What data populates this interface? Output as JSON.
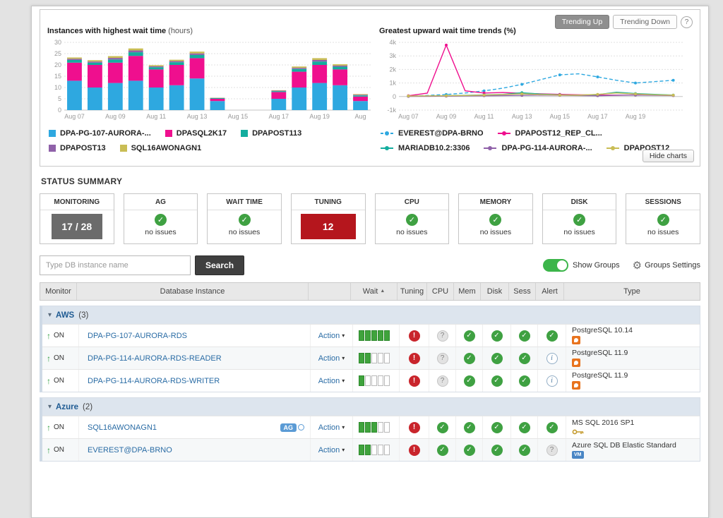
{
  "charts": {
    "bar_title": "Instances with highest wait time",
    "bar_unit": "(hours)",
    "line_title": "Greatest upward wait time trends (%)",
    "trending_up": "Trending Up",
    "trending_down": "Trending Down",
    "help": "?",
    "hide_button": "Hide charts"
  },
  "chart_data": [
    {
      "type": "bar",
      "stacked": true,
      "title": "Instances with highest wait time (hours)",
      "categories": [
        "Aug 07",
        "Aug 08",
        "Aug 09",
        "Aug 10",
        "Aug 11",
        "Aug 12",
        "Aug 13",
        "Aug 14",
        "Aug 15",
        "Aug 16",
        "Aug 17",
        "Aug 18",
        "Aug 19",
        "Aug 20",
        "Aug 21"
      ],
      "x_tick_labels": [
        "Aug 07",
        "Aug 09",
        "Aug 11",
        "Aug 13",
        "Aug 15",
        "Aug 17",
        "Aug 19",
        "Aug"
      ],
      "ylim": [
        0,
        30
      ],
      "y_ticks": [
        0,
        5,
        10,
        15,
        20,
        25,
        30
      ],
      "ylabel": "hours",
      "grid": true,
      "legend_position": "bottom",
      "series": [
        {
          "name": "DPA-PG-107-AURORA-...",
          "color": "#2ea8e0",
          "values": [
            13,
            10,
            12,
            13,
            10,
            11,
            14,
            4,
            0,
            0,
            5,
            10,
            12,
            11,
            4
          ]
        },
        {
          "name": "DPASQL2K17",
          "color": "#ef0f8e",
          "values": [
            8,
            10,
            9,
            11,
            8,
            9,
            9,
            1,
            0,
            0,
            3,
            7,
            8,
            7,
            2
          ]
        },
        {
          "name": "DPAPOST113",
          "color": "#13ad9e",
          "values": [
            1.2,
            1,
            1.4,
            1.6,
            1,
            1.2,
            1.4,
            0.3,
            0,
            0,
            0.4,
            1.2,
            1.5,
            1.2,
            0.5
          ]
        },
        {
          "name": "DPAPOST13",
          "color": "#8f61a9",
          "values": [
            0.5,
            0.5,
            0.7,
            0.8,
            0.4,
            0.5,
            0.7,
            0.1,
            0,
            0,
            0.2,
            0.5,
            0.7,
            0.5,
            0.3
          ]
        },
        {
          "name": "SQL16AWONAGN1",
          "color": "#c9bd55",
          "values": [
            0.6,
            0.6,
            0.8,
            0.9,
            0.5,
            0.6,
            0.8,
            0.1,
            0,
            0,
            0.2,
            0.6,
            0.8,
            0.6,
            0.3
          ]
        }
      ]
    },
    {
      "type": "line",
      "title": "Greatest upward wait time trends (%)",
      "categories": [
        "Aug 07",
        "Aug 08",
        "Aug 09",
        "Aug 10",
        "Aug 11",
        "Aug 12",
        "Aug 13",
        "Aug 14",
        "Aug 15",
        "Aug 16",
        "Aug 17",
        "Aug 18",
        "Aug 19",
        "Aug 20",
        "Aug 21"
      ],
      "x_tick_labels": [
        "Aug 07",
        "Aug 09",
        "Aug 11",
        "Aug 13",
        "Aug 15",
        "Aug 17",
        "Aug 19"
      ],
      "ylim": [
        -1000,
        4000
      ],
      "y_ticks": [
        -1000,
        0,
        1000,
        2000,
        3000,
        4000
      ],
      "y_tick_labels": [
        "-1k",
        "0",
        "1k",
        "2k",
        "3k",
        "4k"
      ],
      "grid": true,
      "legend_position": "bottom",
      "series": [
        {
          "name": "EVEREST@DPA-BRNO",
          "color": "#2ea8e0",
          "dashed": true,
          "values": [
            20,
            80,
            150,
            260,
            420,
            620,
            900,
            1250,
            1600,
            1680,
            1450,
            1200,
            1000,
            1100,
            1200
          ]
        },
        {
          "name": "DPAPOST12_REP_CL...",
          "color": "#ef0f8e",
          "values": [
            60,
            250,
            3800,
            420,
            260,
            300,
            240,
            200,
            160,
            130,
            110,
            100,
            120,
            110,
            90
          ]
        },
        {
          "name": "MARIADB10.2:3306",
          "color": "#13ad9e",
          "values": [
            30,
            40,
            60,
            90,
            120,
            160,
            280,
            180,
            120,
            100,
            140,
            320,
            220,
            160,
            110
          ]
        },
        {
          "name": "DPA-PG-114-AURORA-...",
          "color": "#8f61a9",
          "values": [
            10,
            20,
            30,
            50,
            60,
            70,
            90,
            110,
            90,
            70,
            60,
            90,
            110,
            90,
            70
          ]
        },
        {
          "name": "DPAPOST12",
          "color": "#c9bd55",
          "values": [
            40,
            50,
            60,
            80,
            110,
            150,
            200,
            150,
            110,
            100,
            160,
            260,
            190,
            130,
            100
          ]
        }
      ]
    }
  ],
  "status_summary": {
    "title": "STATUS SUMMARY",
    "cards": [
      {
        "label": "MONITORING",
        "kind": "count",
        "value": "17 / 28"
      },
      {
        "label": "AG",
        "kind": "ok",
        "value": "no issues"
      },
      {
        "label": "WAIT TIME",
        "kind": "ok",
        "value": "no issues"
      },
      {
        "label": "TUNING",
        "kind": "alert",
        "value": "12"
      },
      {
        "label": "CPU",
        "kind": "ok",
        "value": "no issues"
      },
      {
        "label": "MEMORY",
        "kind": "ok",
        "value": "no issues"
      },
      {
        "label": "DISK",
        "kind": "ok",
        "value": "no issues"
      },
      {
        "label": "SESSIONS",
        "kind": "ok",
        "value": "no issues"
      }
    ]
  },
  "toolbar": {
    "search_placeholder": "Type DB instance name",
    "search_button": "Search",
    "show_groups_label": "Show Groups",
    "groups_settings_label": "Groups Settings"
  },
  "table": {
    "action_label": "Action",
    "columns": [
      {
        "key": "monitor",
        "label": "Monitor"
      },
      {
        "key": "instance",
        "label": "Database Instance"
      },
      {
        "key": "action",
        "label": ""
      },
      {
        "key": "wait",
        "label": "Wait",
        "sort": "asc"
      },
      {
        "key": "tuning",
        "label": "Tuning"
      },
      {
        "key": "cpu",
        "label": "CPU"
      },
      {
        "key": "mem",
        "label": "Mem"
      },
      {
        "key": "disk",
        "label": "Disk"
      },
      {
        "key": "sess",
        "label": "Sess"
      },
      {
        "key": "alert",
        "label": "Alert"
      },
      {
        "key": "type",
        "label": "Type"
      }
    ],
    "groups": [
      {
        "name": "AWS",
        "count": "(3)",
        "rows": [
          {
            "monitor": "ON",
            "name": "DPA-PG-107-AURORA-RDS",
            "badge": null,
            "wait": 5,
            "tuning": "alert",
            "cpu": "unknown",
            "mem": "ok",
            "disk": "ok",
            "sess": "ok",
            "alert": "ok",
            "type": "PostgreSQL 10.14",
            "type_icon": "postgresql"
          },
          {
            "monitor": "ON",
            "name": "DPA-PG-114-AURORA-RDS-READER",
            "badge": null,
            "wait": 2,
            "tuning": "alert",
            "cpu": "unknown",
            "mem": "ok",
            "disk": "ok",
            "sess": "ok",
            "alert": "info",
            "type": "PostgreSQL 11.9",
            "type_icon": "postgresql"
          },
          {
            "monitor": "ON",
            "name": "DPA-PG-114-AURORA-RDS-WRITER",
            "badge": null,
            "wait": 1,
            "tuning": "alert",
            "cpu": "unknown",
            "mem": "ok",
            "disk": "ok",
            "sess": "ok",
            "alert": "info",
            "type": "PostgreSQL 11.9",
            "type_icon": "postgresql"
          }
        ]
      },
      {
        "name": "Azure",
        "count": "(2)",
        "rows": [
          {
            "monitor": "ON",
            "name": "SQL16AWONAGN1",
            "badge": "AG",
            "wait": 3,
            "tuning": "alert",
            "cpu": "ok",
            "mem": "ok",
            "disk": "ok",
            "sess": "ok",
            "alert": "ok",
            "type": "MS SQL 2016 SP1",
            "type_icon": "key"
          },
          {
            "monitor": "ON",
            "name": "EVEREST@DPA-BRNO",
            "badge": null,
            "wait": 2,
            "tuning": "alert",
            "cpu": "ok",
            "mem": "ok",
            "disk": "ok",
            "sess": "ok",
            "alert": "unknown",
            "type": "Azure SQL DB Elastic Standard",
            "type_icon": "azure-vm"
          }
        ]
      }
    ]
  }
}
